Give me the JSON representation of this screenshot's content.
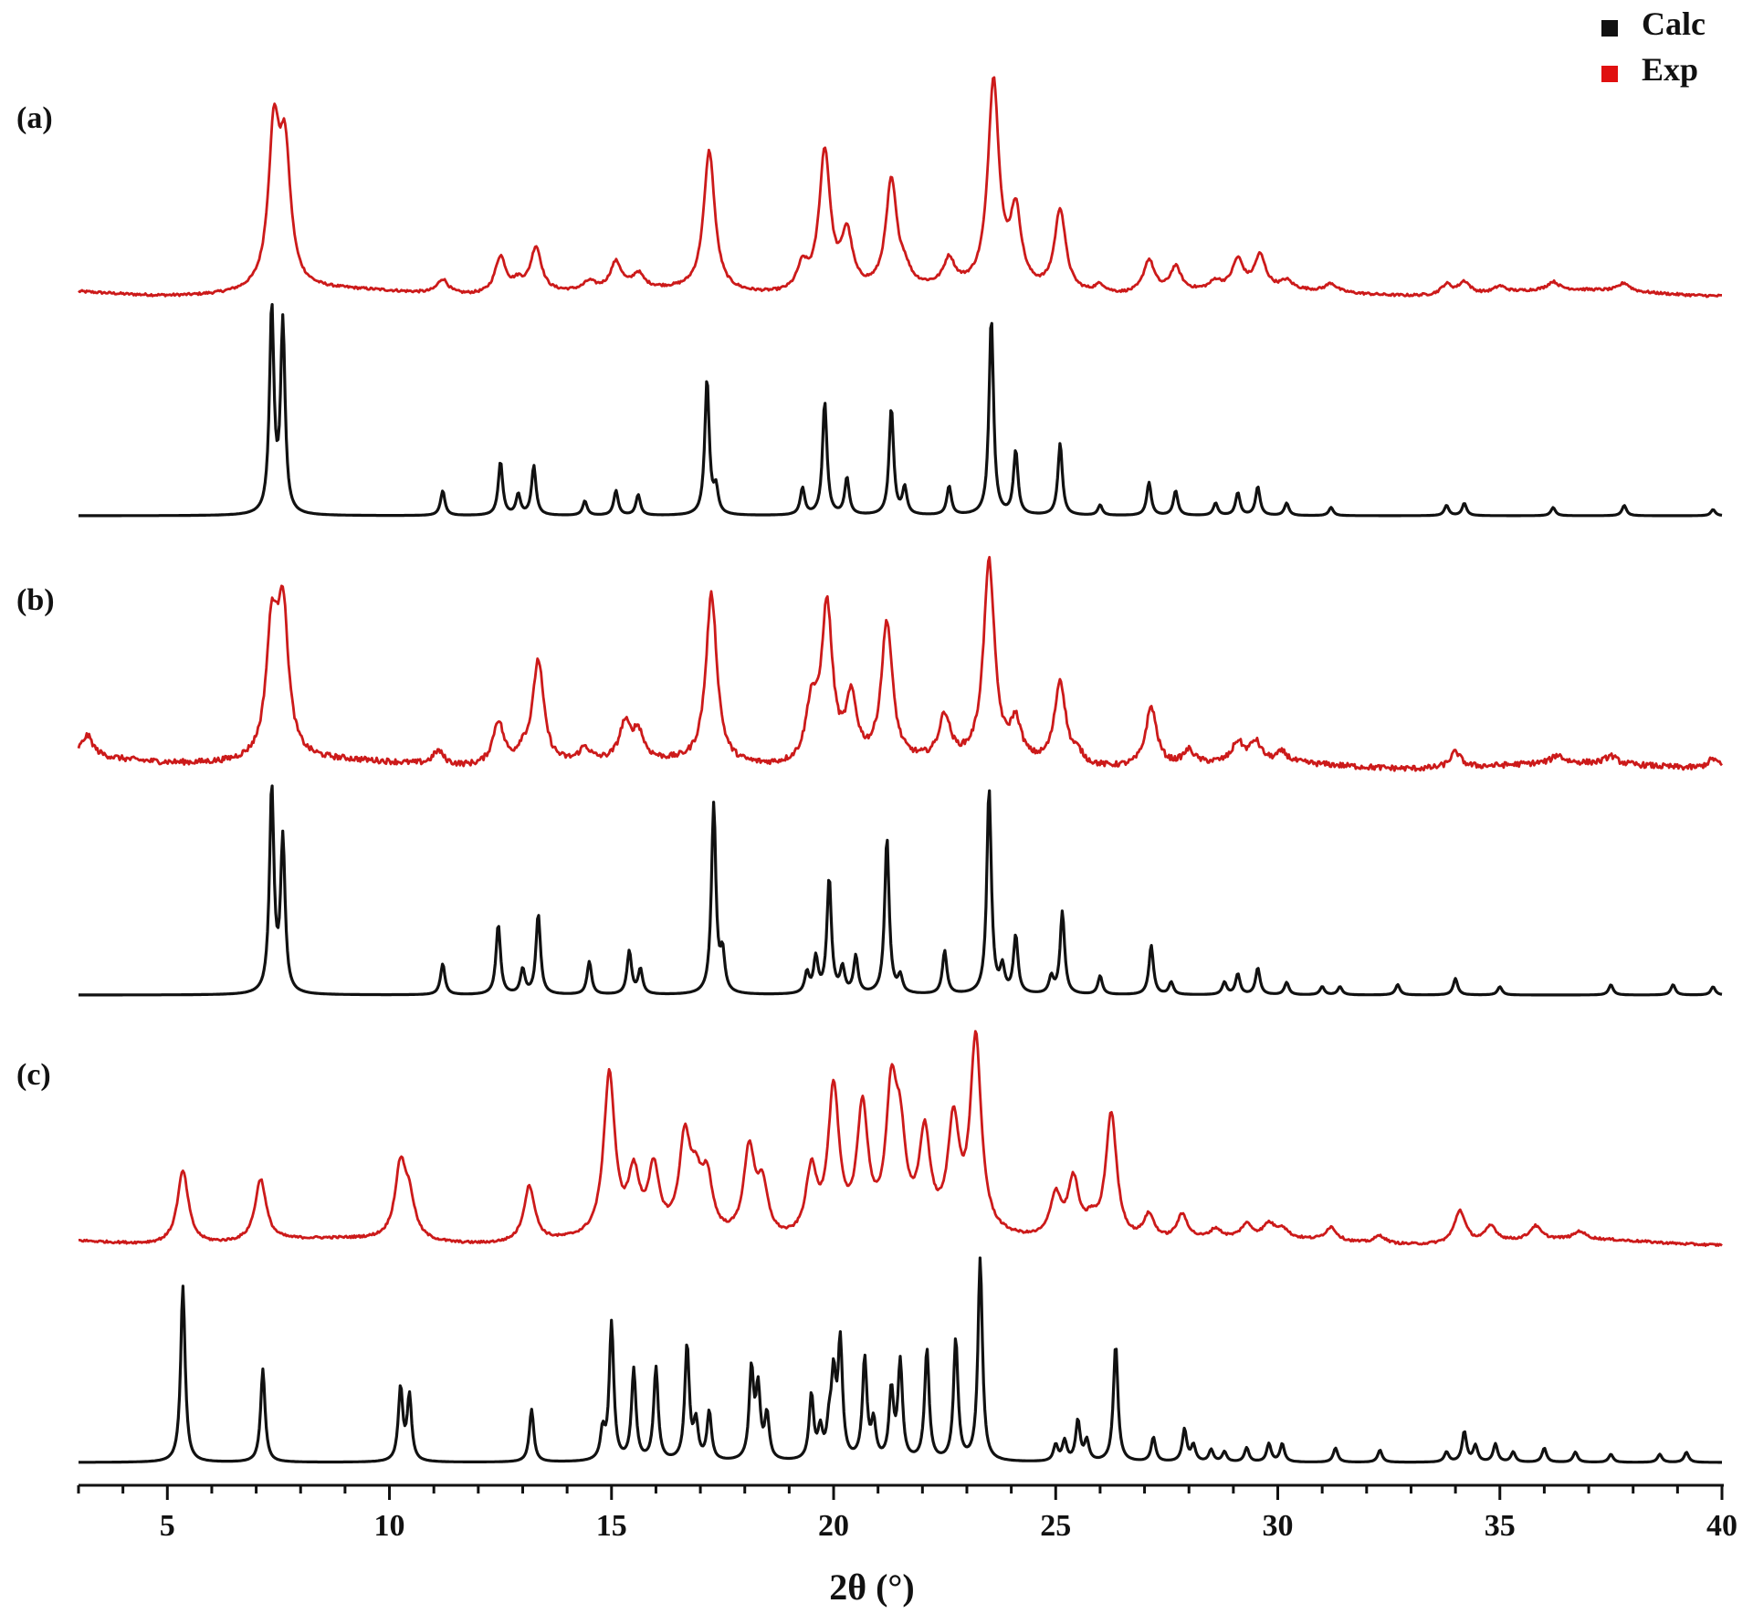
{
  "chart_data": {
    "type": "line",
    "xlabel": "2θ (°)",
    "xlim": [
      3,
      40
    ],
    "x_ticks": [
      5,
      10,
      15,
      20,
      25,
      30,
      35,
      40
    ],
    "legend": {
      "position": "top-right",
      "entries": [
        {
          "name": "Calc",
          "color": "#111111"
        },
        {
          "name": "Exp",
          "color": "#e01010"
        }
      ]
    },
    "panels": [
      {
        "label": "(a)",
        "series": [
          {
            "name": "Exp",
            "color": "#cc1a1a",
            "baseline": 0.04,
            "noise": 0.006,
            "peaks": [
              [
                7.4,
                0.74
              ],
              [
                7.65,
                0.62
              ],
              [
                11.2,
                0.07
              ],
              [
                12.5,
                0.18
              ],
              [
                12.9,
                0.05
              ],
              [
                13.3,
                0.22
              ],
              [
                14.5,
                0.04
              ],
              [
                15.1,
                0.13
              ],
              [
                15.6,
                0.07
              ],
              [
                17.2,
                0.68
              ],
              [
                19.3,
                0.12
              ],
              [
                19.8,
                0.68
              ],
              [
                20.3,
                0.27
              ],
              [
                21.3,
                0.52
              ],
              [
                21.6,
                0.07
              ],
              [
                22.6,
                0.13
              ],
              [
                23.6,
                1.0
              ],
              [
                24.1,
                0.36
              ],
              [
                25.1,
                0.4
              ],
              [
                26.0,
                0.04
              ],
              [
                27.1,
                0.16
              ],
              [
                27.7,
                0.12
              ],
              [
                28.6,
                0.04
              ],
              [
                29.1,
                0.14
              ],
              [
                29.6,
                0.16
              ],
              [
                30.2,
                0.04
              ],
              [
                31.2,
                0.04
              ],
              [
                33.8,
                0.05
              ],
              [
                34.2,
                0.06
              ],
              [
                35.0,
                0.03
              ],
              [
                36.2,
                0.04
              ],
              [
                37.8,
                0.04
              ]
            ],
            "width": 0.15
          },
          {
            "name": "Calc",
            "color": "#111111",
            "baseline": 0.0,
            "noise": 0,
            "peaks": [
              [
                7.35,
                1.0
              ],
              [
                7.6,
                0.92
              ],
              [
                11.2,
                0.12
              ],
              [
                12.5,
                0.26
              ],
              [
                12.9,
                0.1
              ],
              [
                13.25,
                0.24
              ],
              [
                14.4,
                0.07
              ],
              [
                15.1,
                0.12
              ],
              [
                15.6,
                0.1
              ],
              [
                17.15,
                0.66
              ],
              [
                17.35,
                0.12
              ],
              [
                19.3,
                0.13
              ],
              [
                19.8,
                0.55
              ],
              [
                20.3,
                0.18
              ],
              [
                21.3,
                0.52
              ],
              [
                21.6,
                0.13
              ],
              [
                22.6,
                0.14
              ],
              [
                23.55,
                0.96
              ],
              [
                24.1,
                0.31
              ],
              [
                25.1,
                0.35
              ],
              [
                26.0,
                0.05
              ],
              [
                27.1,
                0.16
              ],
              [
                27.7,
                0.12
              ],
              [
                28.6,
                0.06
              ],
              [
                29.1,
                0.11
              ],
              [
                29.55,
                0.14
              ],
              [
                30.2,
                0.06
              ],
              [
                31.2,
                0.04
              ],
              [
                33.8,
                0.05
              ],
              [
                34.2,
                0.06
              ],
              [
                36.2,
                0.04
              ],
              [
                37.8,
                0.05
              ],
              [
                39.8,
                0.03
              ]
            ],
            "width": 0.06
          }
        ]
      },
      {
        "label": "(b)",
        "series": [
          {
            "name": "Exp",
            "color": "#cc1a1a",
            "baseline": 0.05,
            "noise": 0.014,
            "peaks": [
              [
                3.2,
                0.1
              ],
              [
                7.35,
                0.62
              ],
              [
                7.6,
                0.72
              ],
              [
                11.1,
                0.07
              ],
              [
                12.45,
                0.22
              ],
              [
                13.0,
                0.06
              ],
              [
                13.35,
                0.52
              ],
              [
                14.4,
                0.07
              ],
              [
                15.3,
                0.18
              ],
              [
                15.6,
                0.14
              ],
              [
                17.25,
                0.85
              ],
              [
                19.5,
                0.28
              ],
              [
                19.85,
                0.78
              ],
              [
                20.4,
                0.31
              ],
              [
                21.2,
                0.7
              ],
              [
                22.5,
                0.22
              ],
              [
                23.5,
                1.0
              ],
              [
                24.1,
                0.19
              ],
              [
                25.1,
                0.42
              ],
              [
                25.5,
                0.05
              ],
              [
                27.15,
                0.3
              ],
              [
                28.0,
                0.07
              ],
              [
                29.1,
                0.1
              ],
              [
                29.5,
                0.1
              ],
              [
                30.1,
                0.05
              ],
              [
                34.0,
                0.08
              ],
              [
                36.3,
                0.04
              ],
              [
                37.5,
                0.04
              ],
              [
                39.8,
                0.05
              ]
            ],
            "width": 0.15
          },
          {
            "name": "Calc",
            "color": "#111111",
            "baseline": 0.0,
            "noise": 0,
            "peaks": [
              [
                7.35,
                1.0
              ],
              [
                7.6,
                0.74
              ],
              [
                11.2,
                0.15
              ],
              [
                12.45,
                0.34
              ],
              [
                13.0,
                0.12
              ],
              [
                13.35,
                0.39
              ],
              [
                14.5,
                0.16
              ],
              [
                15.4,
                0.21
              ],
              [
                15.65,
                0.12
              ],
              [
                17.3,
                0.92
              ],
              [
                17.5,
                0.18
              ],
              [
                19.4,
                0.1
              ],
              [
                19.6,
                0.17
              ],
              [
                19.9,
                0.56
              ],
              [
                20.2,
                0.12
              ],
              [
                20.5,
                0.18
              ],
              [
                21.2,
                0.76
              ],
              [
                21.5,
                0.08
              ],
              [
                22.5,
                0.21
              ],
              [
                23.5,
                1.0
              ],
              [
                23.8,
                0.12
              ],
              [
                24.1,
                0.28
              ],
              [
                24.9,
                0.08
              ],
              [
                25.15,
                0.4
              ],
              [
                26.0,
                0.09
              ],
              [
                27.15,
                0.24
              ],
              [
                27.6,
                0.06
              ],
              [
                28.8,
                0.06
              ],
              [
                29.1,
                0.1
              ],
              [
                29.55,
                0.13
              ],
              [
                30.2,
                0.06
              ],
              [
                31.0,
                0.04
              ],
              [
                31.4,
                0.04
              ],
              [
                32.7,
                0.05
              ],
              [
                34.0,
                0.08
              ],
              [
                35.0,
                0.04
              ],
              [
                37.5,
                0.05
              ],
              [
                38.9,
                0.05
              ],
              [
                39.8,
                0.04
              ]
            ],
            "width": 0.06
          }
        ]
      },
      {
        "label": "(c)",
        "series": [
          {
            "name": "Exp",
            "color": "#cc1a1a",
            "baseline": 0.02,
            "noise": 0.006,
            "peaks": [
              [
                5.35,
                0.38
              ],
              [
                7.1,
                0.32
              ],
              [
                10.25,
                0.37
              ],
              [
                10.45,
                0.18
              ],
              [
                13.15,
                0.29
              ],
              [
                14.95,
                0.84
              ],
              [
                15.5,
                0.3
              ],
              [
                15.95,
                0.33
              ],
              [
                16.65,
                0.48
              ],
              [
                16.9,
                0.22
              ],
              [
                17.15,
                0.28
              ],
              [
                18.1,
                0.45
              ],
              [
                18.4,
                0.25
              ],
              [
                19.5,
                0.34
              ],
              [
                20.0,
                0.76
              ],
              [
                20.65,
                0.65
              ],
              [
                21.3,
                0.67
              ],
              [
                21.5,
                0.42
              ],
              [
                22.05,
                0.5
              ],
              [
                22.7,
                0.56
              ],
              [
                23.2,
                1.0
              ],
              [
                25.0,
                0.22
              ],
              [
                25.4,
                0.3
              ],
              [
                25.8,
                0.08
              ],
              [
                26.25,
                0.66
              ],
              [
                27.1,
                0.13
              ],
              [
                27.85,
                0.13
              ],
              [
                28.6,
                0.05
              ],
              [
                29.3,
                0.07
              ],
              [
                29.8,
                0.07
              ],
              [
                30.1,
                0.05
              ],
              [
                31.2,
                0.07
              ],
              [
                32.3,
                0.04
              ],
              [
                34.1,
                0.17
              ],
              [
                34.8,
                0.08
              ],
              [
                35.8,
                0.07
              ],
              [
                36.8,
                0.04
              ]
            ],
            "width": 0.15
          },
          {
            "name": "Calc",
            "color": "#111111",
            "baseline": 0.0,
            "noise": 0,
            "peaks": [
              [
                5.35,
                0.87
              ],
              [
                7.15,
                0.46
              ],
              [
                10.25,
                0.36
              ],
              [
                10.45,
                0.32
              ],
              [
                13.2,
                0.26
              ],
              [
                14.8,
                0.14
              ],
              [
                15.0,
                0.68
              ],
              [
                15.5,
                0.45
              ],
              [
                16.0,
                0.46
              ],
              [
                16.7,
                0.57
              ],
              [
                16.9,
                0.18
              ],
              [
                17.2,
                0.24
              ],
              [
                18.15,
                0.44
              ],
              [
                18.3,
                0.34
              ],
              [
                18.5,
                0.22
              ],
              [
                19.5,
                0.32
              ],
              [
                19.7,
                0.14
              ],
              [
                19.9,
                0.15
              ],
              [
                20.0,
                0.38
              ],
              [
                20.15,
                0.57
              ],
              [
                20.7,
                0.5
              ],
              [
                20.9,
                0.18
              ],
              [
                21.3,
                0.34
              ],
              [
                21.5,
                0.48
              ],
              [
                22.1,
                0.55
              ],
              [
                22.75,
                0.6
              ],
              [
                23.3,
                1.0
              ],
              [
                25.0,
                0.08
              ],
              [
                25.2,
                0.1
              ],
              [
                25.5,
                0.2
              ],
              [
                25.7,
                0.1
              ],
              [
                26.35,
                0.58
              ],
              [
                27.2,
                0.12
              ],
              [
                27.9,
                0.16
              ],
              [
                28.1,
                0.08
              ],
              [
                28.5,
                0.06
              ],
              [
                28.8,
                0.05
              ],
              [
                29.3,
                0.07
              ],
              [
                29.8,
                0.09
              ],
              [
                30.1,
                0.09
              ],
              [
                31.3,
                0.07
              ],
              [
                32.3,
                0.06
              ],
              [
                33.8,
                0.05
              ],
              [
                34.2,
                0.15
              ],
              [
                34.45,
                0.08
              ],
              [
                34.9,
                0.09
              ],
              [
                35.3,
                0.05
              ],
              [
                36.0,
                0.07
              ],
              [
                36.7,
                0.05
              ],
              [
                37.5,
                0.04
              ],
              [
                38.6,
                0.04
              ],
              [
                39.2,
                0.05
              ]
            ],
            "width": 0.06
          }
        ]
      }
    ]
  }
}
